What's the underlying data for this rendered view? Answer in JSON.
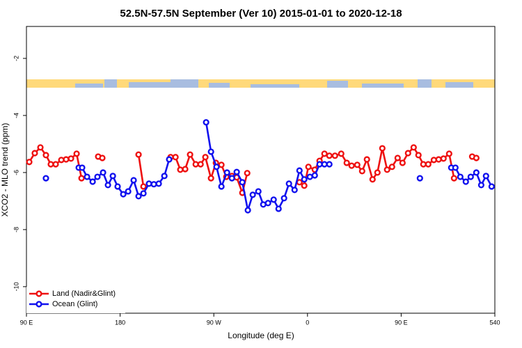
{
  "chart_data": {
    "type": "line",
    "title": "52.5N-57.5N September (Ver 10)   2015-01-01 to 2020-12-18",
    "x_label": "Longitude (deg E)",
    "y_label": "XCO2 - MLO trend (ppm)",
    "xlim": [
      90,
      540
    ],
    "ylim": [
      -10.93,
      -0.88
    ],
    "xticks": [
      {
        "value": 90,
        "label": "90 E"
      },
      180,
      {
        "value": 270,
        "label": "90 W"
      },
      {
        "value": 360,
        "label": "0"
      },
      {
        "value": 450,
        "label": "90 E"
      },
      540
    ],
    "yticks": [
      -2,
      -4,
      -6,
      -8,
      -10
    ],
    "grid": false,
    "legend": "bottom-left",
    "series": [
      {
        "name": "Land (Nadir&Glint)",
        "color": "#ee1111",
        "x": [
          92.7,
          98.0,
          103.4,
          108.7,
          113.4,
          118.1,
          123.5,
          128.1,
          132.8,
          138.2,
          142.9,
          null,
          158.9,
          162.9,
          null,
          197.7,
          202.4,
          null,
          228.5,
          233.2,
          237.8,
          242.5,
          247.2,
          252.6,
          257.3,
          261.9,
          267.3,
          272.0,
          277.3,
          282.0,
          287.4,
          292.0,
          297.4,
          302.1,
          null,
          352.3,
          356.9,
          360.9,
          367.0,
          371.6,
          376.3,
          381.0,
          386.4,
          392.4,
          397.7,
          402.4,
          407.8,
          412.5,
          417.1,
          422.5,
          427.2,
          431.9,
          436.5,
          441.2,
          446.6,
          451.3,
          456.6,
          462.0,
          466.6,
          471.3,
          476.0,
          481.4,
          486.0,
          490.7,
          496.1,
          500.8,
          null,
          518.2,
          522.2
        ],
        "values": [
          -5.63,
          -5.32,
          -5.12,
          -5.39,
          -5.71,
          -5.71,
          -5.56,
          -5.54,
          -5.51,
          -5.34,
          -6.2,
          null,
          -5.44,
          -5.49,
          null,
          -5.37,
          -6.49,
          null,
          -5.46,
          -5.46,
          -5.9,
          -5.88,
          -5.37,
          -5.71,
          -5.71,
          -5.46,
          -6.2,
          -5.66,
          -5.73,
          -6.15,
          -6.12,
          -6.17,
          -6.71,
          -6.02,
          null,
          -6.34,
          -6.46,
          -5.8,
          -5.9,
          -5.59,
          -5.34,
          -5.41,
          -5.41,
          -5.34,
          -5.66,
          -5.76,
          -5.73,
          -5.95,
          -5.54,
          -6.24,
          -6.0,
          -5.15,
          -5.9,
          -5.8,
          -5.49,
          -5.66,
          -5.32,
          -5.12,
          -5.39,
          -5.71,
          -5.71,
          -5.56,
          -5.54,
          -5.51,
          -5.34,
          -6.2,
          null,
          -5.44,
          -5.49
        ]
      },
      {
        "name": "Ocean (Glint)",
        "color": "#1111ee",
        "x": [
          108.7,
          null,
          140.2,
          143.5,
          148.2,
          153.6,
          158.2,
          163.6,
          168.3,
          173.0,
          177.6,
          183.0,
          187.7,
          193.0,
          197.7,
          202.4,
          207.7,
          212.4,
          217.1,
          222.5,
          227.1,
          null,
          262.6,
          267.3,
          272.6,
          277.3,
          282.7,
          287.4,
          292.0,
          297.4,
          302.7,
          307.4,
          312.8,
          317.5,
          322.1,
          327.5,
          332.2,
          337.5,
          342.2,
          347.6,
          352.3,
          356.9,
          362.3,
          367.0,
          371.6,
          376.3,
          381.0,
          null,
          468.0,
          null,
          498.1,
          502.1,
          506.8,
          512.1,
          516.8,
          522.2,
          526.9,
          531.5,
          536.9
        ],
        "values": [
          -6.2,
          null,
          -5.83,
          -5.83,
          -6.15,
          -6.32,
          -6.15,
          -6.0,
          -6.44,
          -6.12,
          -6.49,
          -6.76,
          -6.66,
          -6.27,
          -6.83,
          -6.73,
          -6.39,
          -6.41,
          -6.39,
          -6.12,
          -5.54,
          null,
          -4.24,
          -5.27,
          -5.8,
          -6.49,
          -6.0,
          -6.2,
          -5.98,
          -6.34,
          -7.32,
          -6.78,
          -6.66,
          -7.12,
          -7.07,
          -6.95,
          -7.27,
          -6.9,
          -6.39,
          -6.61,
          -5.93,
          -6.24,
          -6.15,
          -6.1,
          -5.71,
          -5.71,
          -5.71,
          null,
          -6.2,
          null,
          -5.83,
          -5.83,
          -6.15,
          -6.32,
          -6.15,
          -6.0,
          -6.44,
          -6.12,
          -6.49
        ]
      }
    ]
  }
}
